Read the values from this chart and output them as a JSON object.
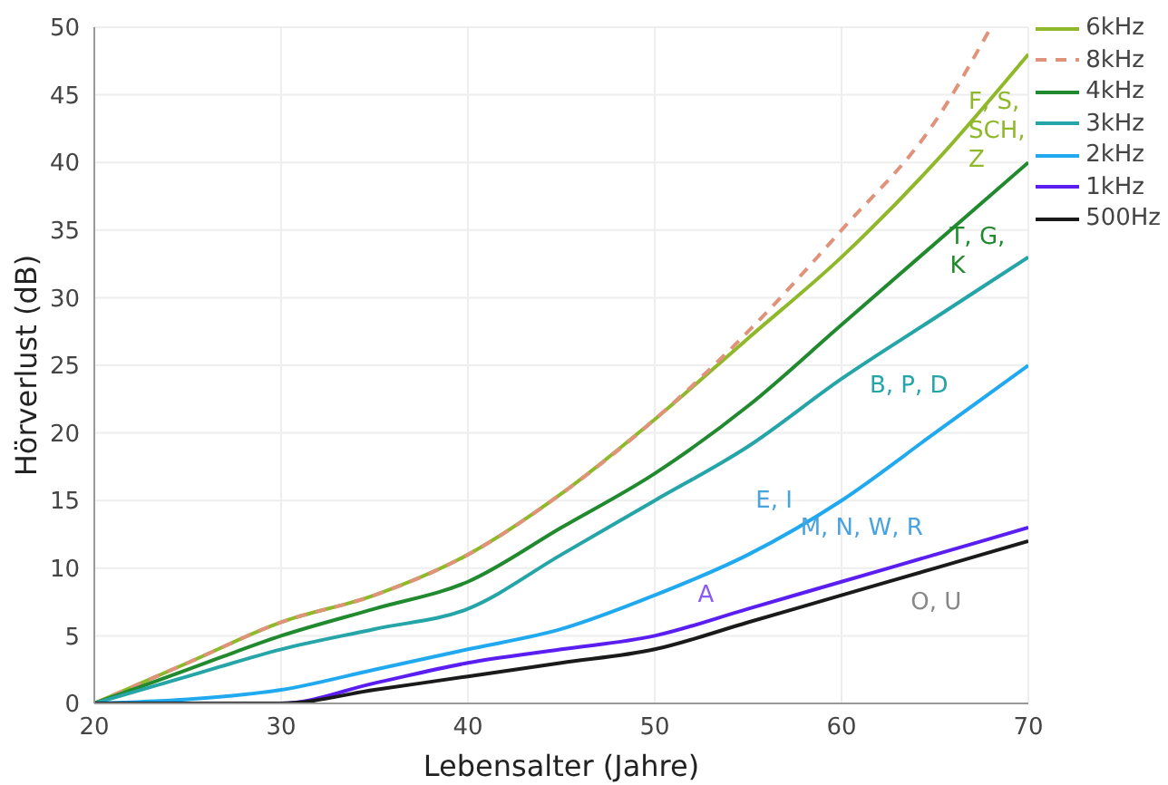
{
  "chart_data": {
    "type": "line",
    "xlabel": "Lebensalter (Jahre)",
    "ylabel": "Hörverlust (dB)",
    "x": [
      20,
      25,
      30,
      35,
      40,
      45,
      50,
      55,
      60,
      65,
      70
    ],
    "xlim": [
      20,
      70
    ],
    "xticks": [
      20,
      30,
      40,
      50,
      60,
      70
    ],
    "ylim": [
      0,
      50
    ],
    "yticks": [
      0,
      5,
      10,
      15,
      20,
      25,
      30,
      35,
      40,
      45,
      50
    ],
    "grid": true,
    "legend": "top right",
    "marker": "none",
    "series": [
      {
        "name": "6kHz",
        "color": "#8fb82a",
        "values": [
          0,
          3,
          6,
          8,
          11,
          15.5,
          21,
          27,
          33,
          40,
          48
        ]
      },
      {
        "name": "8kHz",
        "color": "#e0937a",
        "line_style": "dashed",
        "x": [
          20,
          25,
          30,
          35,
          40,
          45,
          50,
          55,
          60,
          65,
          68
        ],
        "values": [
          0,
          3,
          6,
          8,
          11,
          15.5,
          21,
          27.5,
          35,
          43,
          50
        ]
      },
      {
        "name": "4kHz",
        "color": "#218a2e",
        "values": [
          0,
          2.5,
          5,
          7,
          9,
          13,
          17,
          22,
          28,
          34,
          40
        ]
      },
      {
        "name": "3kHz",
        "color": "#25a5a8",
        "values": [
          0,
          2,
          4,
          5.5,
          7,
          11,
          15,
          19,
          24,
          28.5,
          33
        ]
      },
      {
        "name": "2kHz",
        "color": "#21a9f0",
        "values": [
          0,
          0.3,
          1,
          2.5,
          4,
          5.5,
          8,
          11,
          15,
          20,
          25
        ]
      },
      {
        "name": "1kHz",
        "color": "#5a1ff0",
        "values": [
          0,
          0,
          0,
          1.5,
          3,
          4,
          5,
          7,
          9,
          11,
          13
        ]
      },
      {
        "name": "500Hz",
        "color": "#1a1a1a",
        "values": [
          0,
          0,
          0,
          1,
          2,
          3,
          4,
          6,
          8,
          10,
          12
        ]
      }
    ],
    "annotations": [
      "F, S, SCH, Z",
      "T, G, K",
      "B, P, D",
      "E, I",
      "M, N, W, R",
      "A",
      "O, U"
    ]
  }
}
